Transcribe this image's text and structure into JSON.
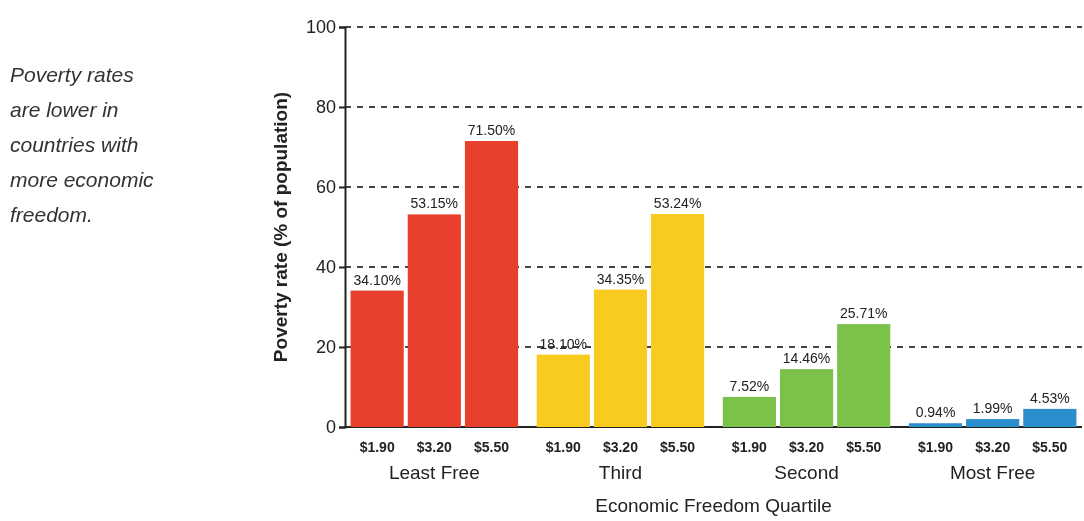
{
  "chart_data": {
    "type": "bar",
    "xlabel": "Economic Freedom Quartile",
    "ylabel": "Poverty rate (% of population)",
    "categories": [
      "Least Free",
      "Third",
      "Second",
      "Most Free"
    ],
    "series": [
      {
        "name": "$1.90",
        "colors": [
          "#e8402d",
          "#f8cb1e",
          "#7cc14a",
          "#2b8fce"
        ],
        "values": [
          34.1,
          18.1,
          7.52,
          0.94
        ],
        "value_labels": [
          "34.10%",
          "18.10%",
          "7.52%",
          "0.94%"
        ]
      },
      {
        "name": "$3.20",
        "colors": [
          "#e8402d",
          "#f8cb1e",
          "#7cc14a",
          "#2b8fce"
        ],
        "values": [
          53.15,
          34.35,
          14.46,
          1.99
        ],
        "value_labels": [
          "53.15%",
          "34.35%",
          "14.46%",
          "1.99%"
        ]
      },
      {
        "name": "$5.50",
        "colors": [
          "#e8402d",
          "#f8cb1e",
          "#7cc14a",
          "#2b8fce"
        ],
        "values": [
          71.5,
          53.24,
          25.71,
          4.53
        ],
        "value_labels": [
          "71.50%",
          "53.24%",
          "25.71%",
          "4.53%"
        ]
      }
    ],
    "ylim": [
      0,
      100
    ],
    "yticks": [
      0,
      20,
      40,
      60,
      80,
      100
    ],
    "grid": "y",
    "annotations": [
      "Poverty rates are lower in countries with more economic freedom."
    ]
  }
}
